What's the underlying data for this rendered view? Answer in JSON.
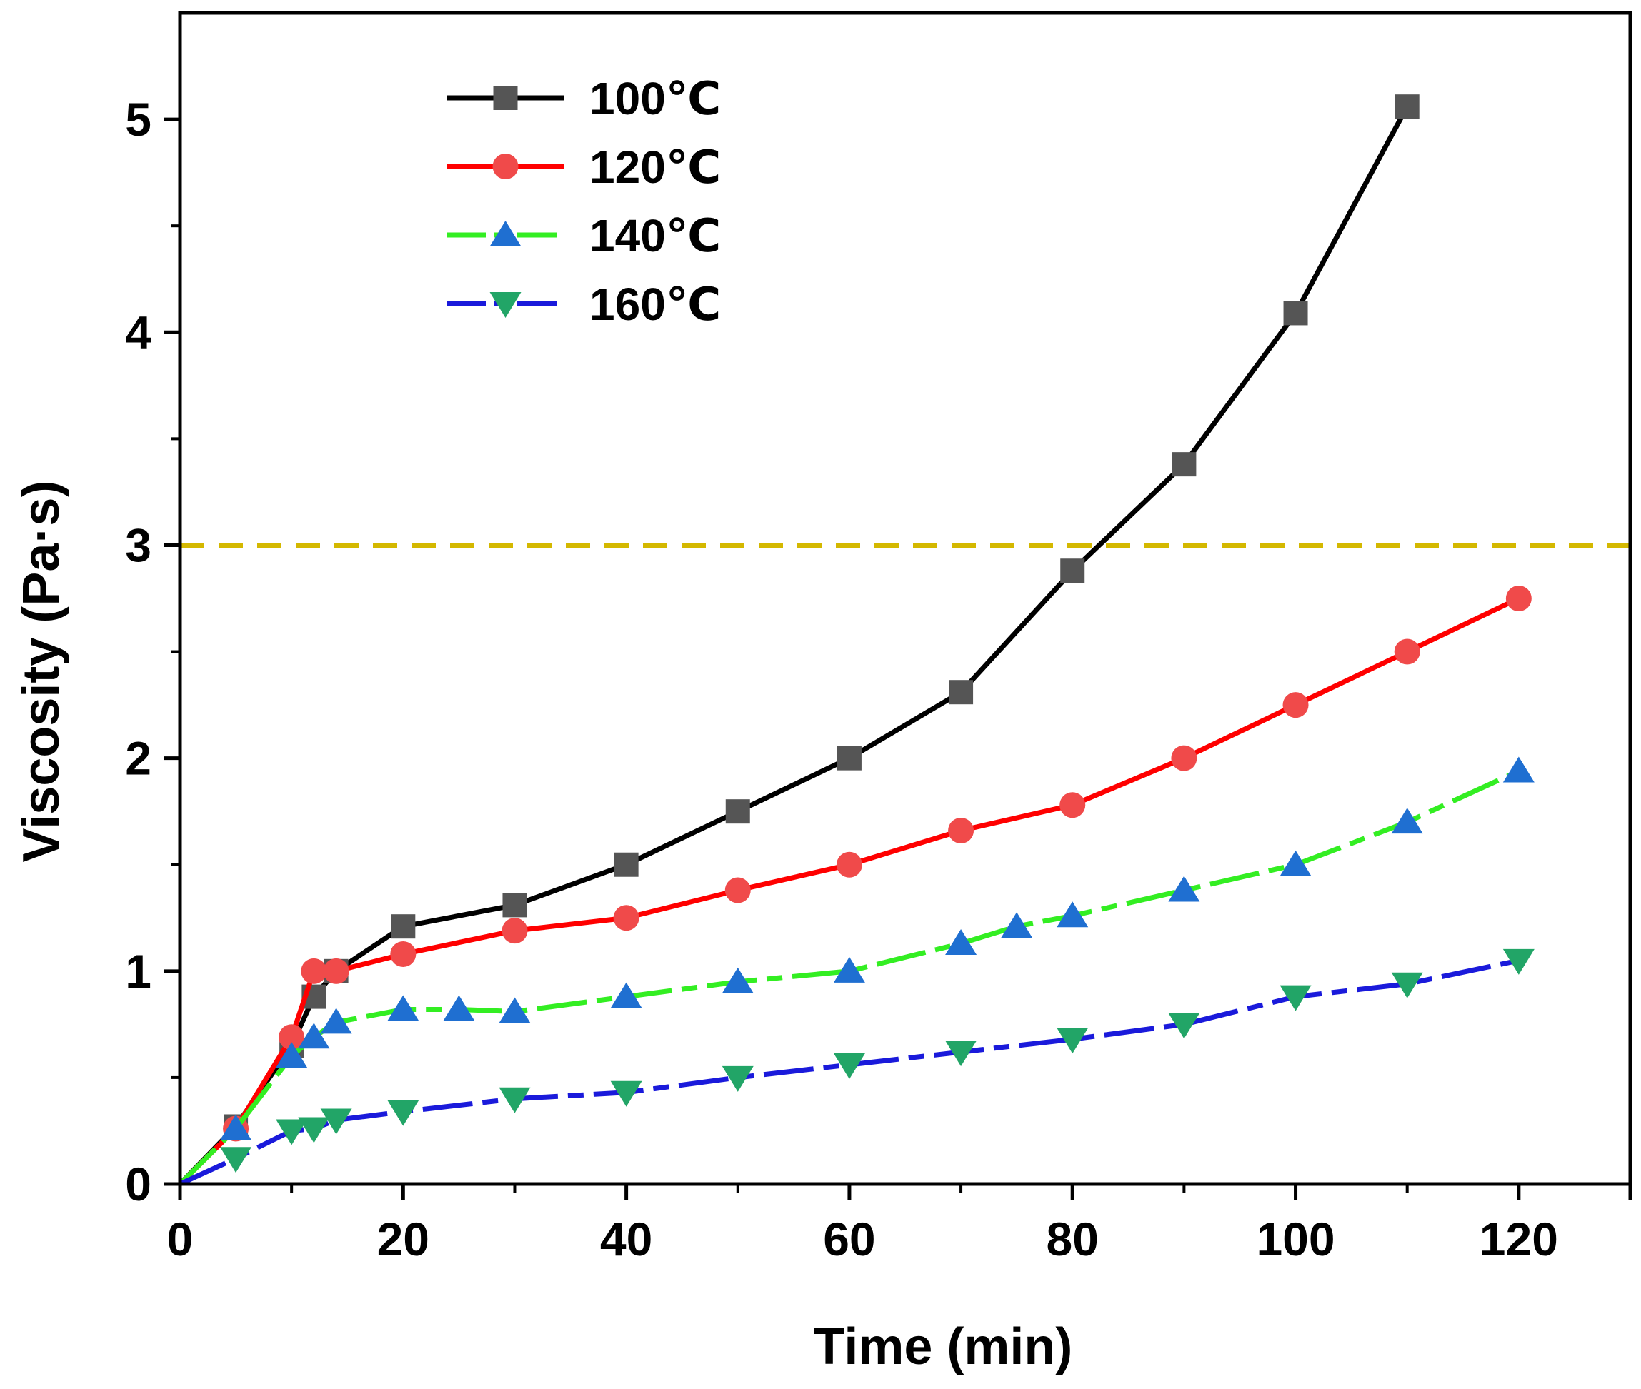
{
  "chart_data": {
    "type": "line",
    "title": "",
    "xlabel": "Time (min)",
    "ylabel": "Viscosity (Pa·s)",
    "xlim": [
      0,
      130
    ],
    "ylim": [
      0,
      5.5
    ],
    "xticks": [
      0,
      20,
      40,
      60,
      80,
      100,
      120
    ],
    "yticks": [
      0,
      1,
      2,
      3,
      4,
      5
    ],
    "x_tick_labels": [
      "0",
      "20",
      "40",
      "60",
      "80",
      "100",
      "120"
    ],
    "y_tick_labels": [
      "0",
      "1",
      "2",
      "3",
      "4",
      "5"
    ],
    "grid": false,
    "legend_position": "top-left",
    "reference_line": {
      "y": 3,
      "style": "dashed",
      "color": "#d4b800"
    },
    "series": [
      {
        "name": "100℃",
        "line_color": "#000000",
        "marker": "square",
        "marker_color": "#555555",
        "line_style": "solid",
        "x": [
          0,
          5,
          10,
          12,
          14,
          20,
          30,
          40,
          50,
          60,
          70,
          80,
          90,
          100,
          110
        ],
        "y": [
          0,
          0.27,
          0.65,
          0.88,
          1.0,
          1.21,
          1.31,
          1.5,
          1.75,
          2.0,
          2.31,
          2.88,
          3.38,
          4.09,
          5.06
        ]
      },
      {
        "name": "120℃",
        "line_color": "#ff0000",
        "marker": "circle",
        "marker_color": "#f04a4a",
        "line_style": "solid",
        "x": [
          0,
          5,
          10,
          12,
          14,
          20,
          30,
          40,
          50,
          60,
          70,
          80,
          90,
          100,
          110,
          120
        ],
        "y": [
          0,
          0.26,
          0.69,
          1.0,
          1.0,
          1.08,
          1.19,
          1.25,
          1.38,
          1.5,
          1.66,
          1.78,
          2.0,
          2.25,
          2.5,
          2.75
        ]
      },
      {
        "name": "140℃",
        "line_color": "#33ee22",
        "marker": "triangle-up",
        "marker_color": "#1f6fd1",
        "line_style": "dash-dot",
        "x": [
          0,
          5,
          10,
          12,
          14,
          20,
          25,
          30,
          40,
          50,
          60,
          70,
          75,
          80,
          90,
          100,
          110,
          120
        ],
        "y": [
          0,
          0.26,
          0.6,
          0.69,
          0.76,
          0.82,
          0.82,
          0.81,
          0.88,
          0.95,
          1.0,
          1.13,
          1.21,
          1.26,
          1.38,
          1.5,
          1.7,
          1.94
        ]
      },
      {
        "name": "160℃",
        "line_color": "#1a1adb",
        "marker": "triangle-down",
        "marker_color": "#22a567",
        "line_style": "dash-dot",
        "x": [
          0,
          5,
          10,
          12,
          14,
          20,
          30,
          40,
          50,
          60,
          70,
          80,
          90,
          100,
          110,
          120
        ],
        "y": [
          0,
          0.12,
          0.25,
          0.26,
          0.3,
          0.34,
          0.4,
          0.43,
          0.5,
          0.56,
          0.62,
          0.68,
          0.75,
          0.88,
          0.94,
          1.05
        ]
      }
    ]
  }
}
